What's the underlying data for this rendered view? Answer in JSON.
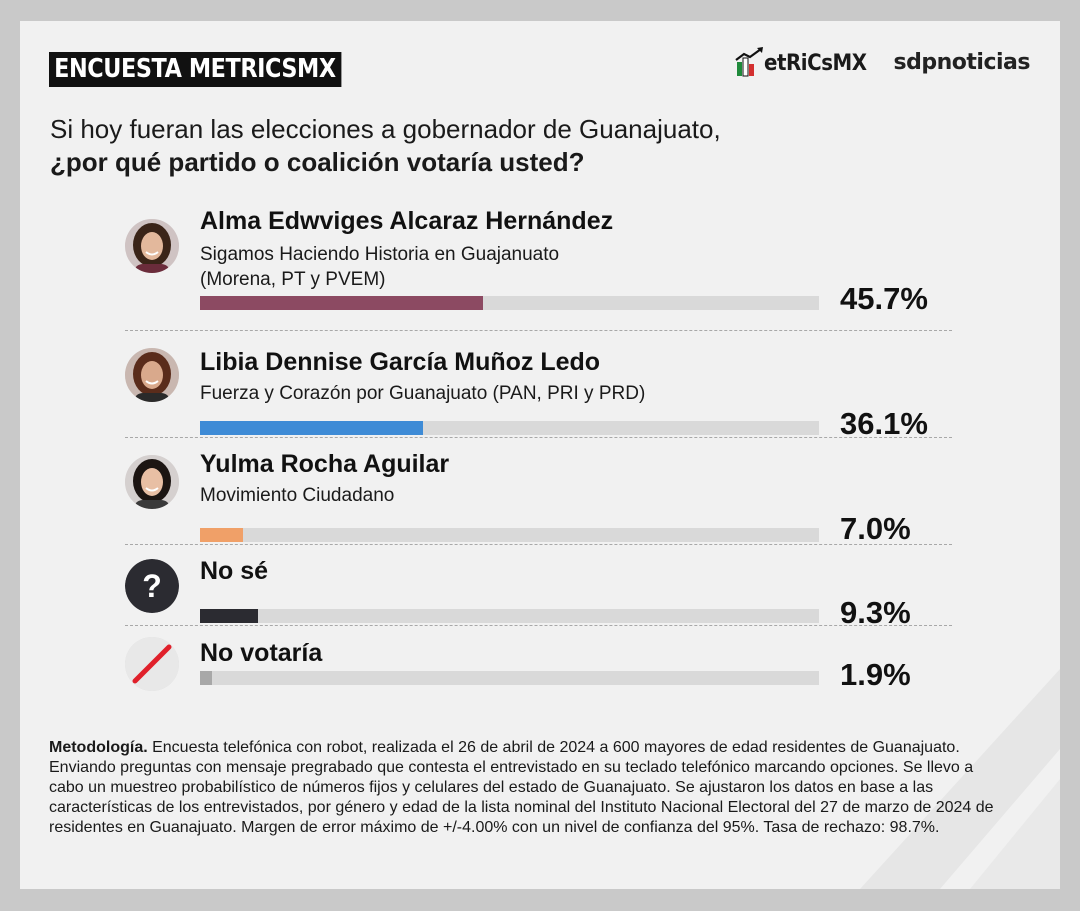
{
  "header": {
    "badge": "ENCUESTA METRICSMX",
    "logo_metrics": "etRiCsMX",
    "logo_sdp": "sdpnoticias"
  },
  "question": {
    "line1": "Si hoy fueran las elecciones a gobernador de Guanajuato,",
    "line2": "¿por qué partido o coalición votaría usted?"
  },
  "chart_data": {
    "type": "bar",
    "categories": [
      "Alma Edwviges Alcaraz Hernández",
      "Libia Dennise García Muñoz Ledo",
      "Yulma Rocha Aguilar",
      "No sé",
      "No votaría"
    ],
    "values": [
      45.7,
      36.1,
      7.0,
      9.3,
      1.9
    ],
    "value_labels": [
      "45.7%",
      "36.1%",
      "7.0%",
      "9.3%",
      "1.9%"
    ],
    "subtitles": [
      "Sigamos Haciendo Historia en Guajanuato (Morena, PT y PVEM)",
      "Fuerza y Corazón por Guanajuato (PAN, PRI y PRD)",
      "Movimiento Ciudadano",
      "",
      ""
    ],
    "colors": [
      "#8c4a62",
      "#3e8bd6",
      "#f0a068",
      "#2b2b31",
      "#a8a8a8"
    ],
    "icons": [
      "candidate-photo",
      "candidate-photo",
      "candidate-photo",
      "question-mark-icon",
      "no-vote-slash-icon"
    ],
    "xlim": [
      0,
      100
    ],
    "grid": false,
    "legend": "none"
  },
  "methodology": {
    "label": "Metodología.",
    "text": " Encuesta telefónica con robot, realizada el 26 de abril de 2024 a 600 mayores de edad residentes de Guanajuato. Enviando preguntas con mensaje pregrabado que contesta el entrevistado en su teclado telefónico marcando opciones. Se llevo a cabo un muestreo probabilístico de números fijos y celulares del estado de Guanajuato. Se ajustaron los datos en base a las características de los entrevistados, por género y edad de la lista nominal del Instituto Nacional Electoral del 27 de marzo de 2024 de residentes en Guanajuato. Margen de error máximo de +/-4.00% con un nivel de confianza del 95%. Tasa de rechazo: 98.7%."
  }
}
